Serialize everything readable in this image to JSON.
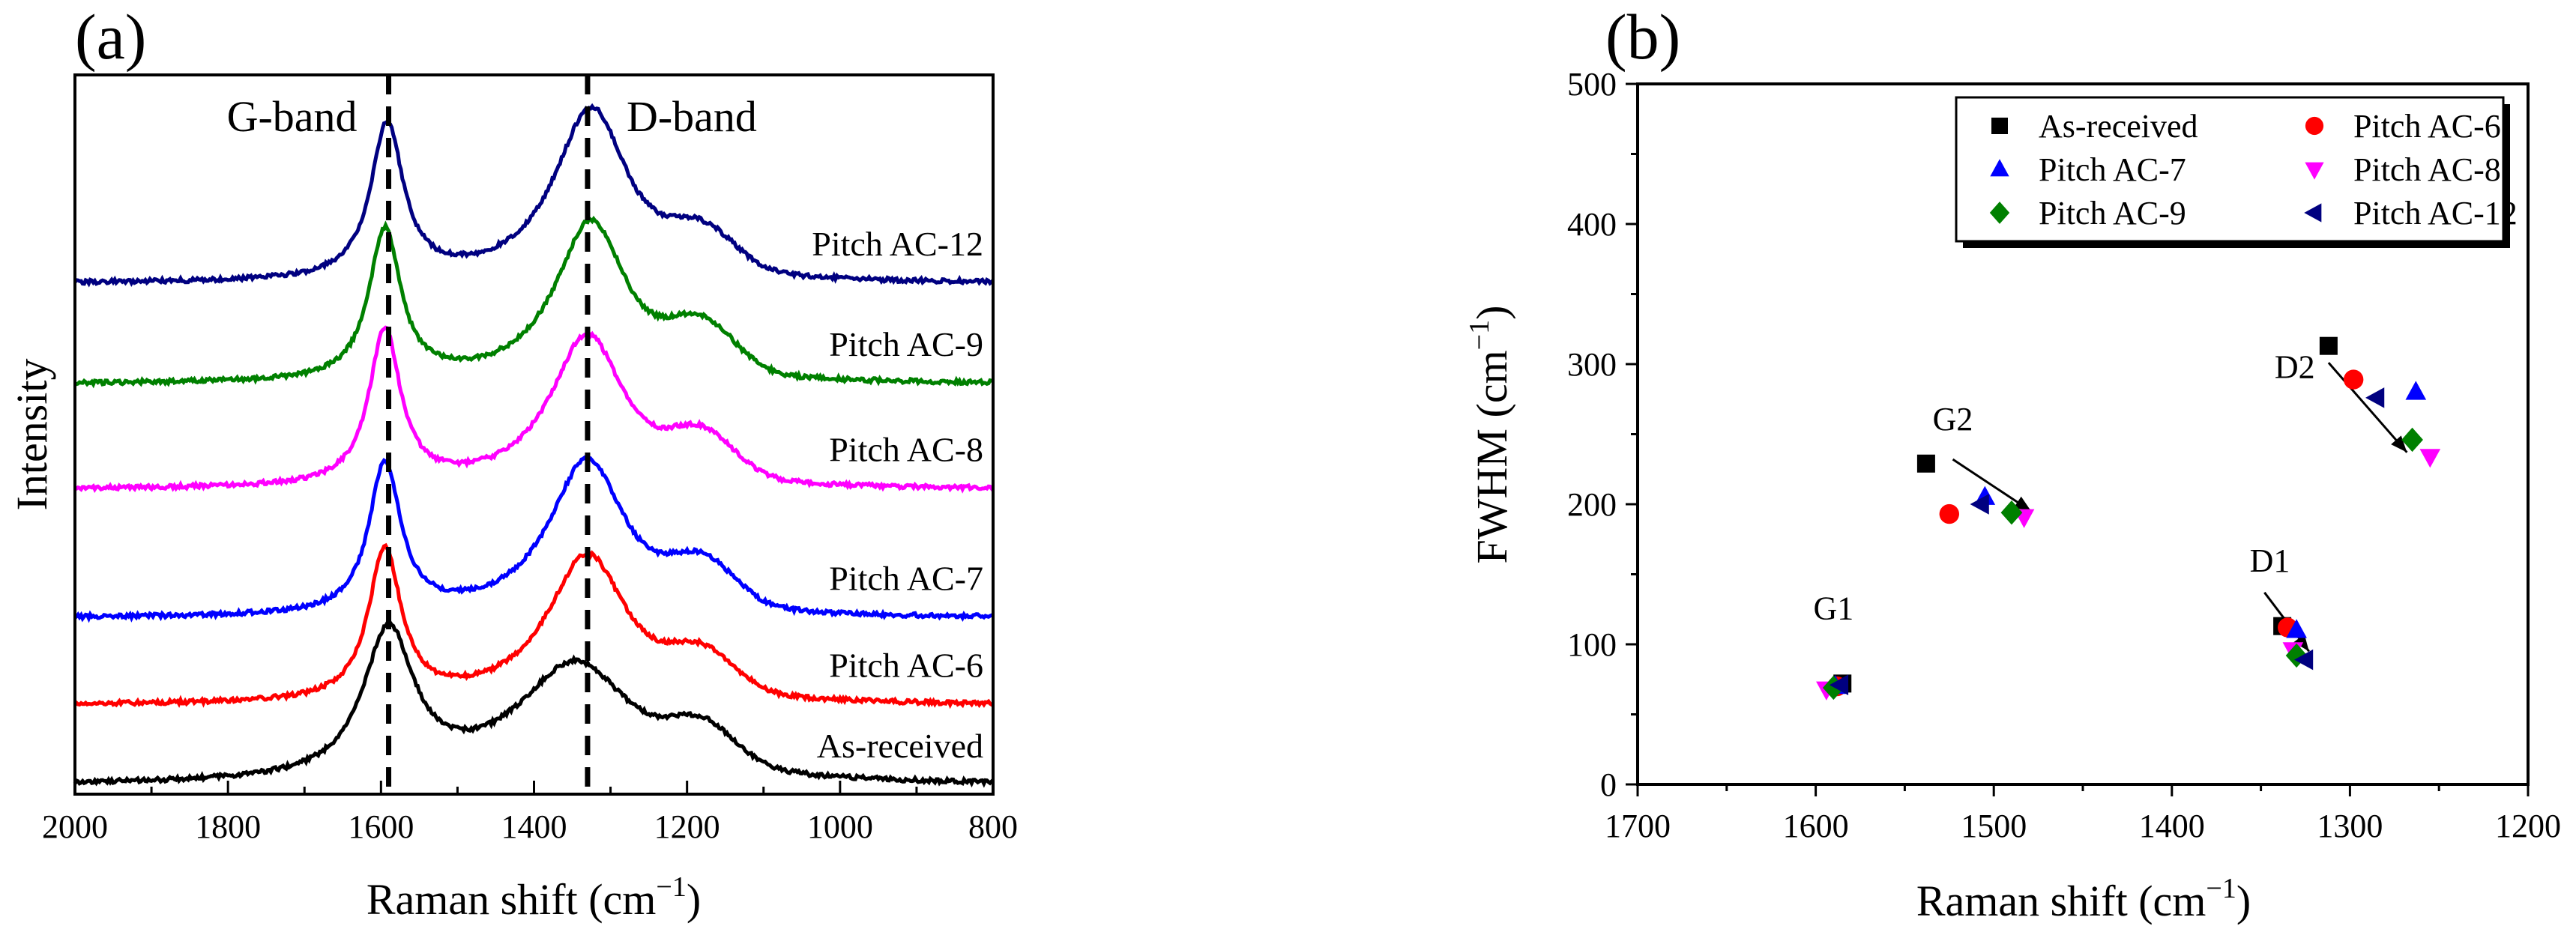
{
  "chart_data": [
    {
      "id": "a",
      "panel_label": "(a)",
      "type": "line",
      "title": "",
      "xlabel_main": "Raman shift (cm",
      "xlabel_sup": "−1",
      "xlabel_end": ")",
      "ylabel": "Intensity",
      "xlim": [
        2000,
        800
      ],
      "xticks": [
        "2000",
        "1800",
        "1600",
        "1400",
        "1200",
        "1000",
        "800"
      ],
      "band_lines": [
        {
          "label": "G-band",
          "x": 1590
        },
        {
          "label": "D-band",
          "x": 1330
        }
      ],
      "series": [
        {
          "name": "As-received",
          "color": "#000000",
          "baseline": 0.0,
          "g_pos": 1590,
          "g_height": 1.75,
          "g_width": 40,
          "d_pos": 1345,
          "d_height": 1.45,
          "d_width": 95,
          "bump_height": 0.45
        },
        {
          "name": "Pitch AC-6",
          "color": "#ff0000",
          "baseline": 0.96,
          "g_pos": 1595,
          "g_height": 1.8,
          "g_width": 26,
          "d_pos": 1330,
          "d_height": 1.8,
          "d_width": 65,
          "bump_height": 0.45
        },
        {
          "name": "Pitch AC-7",
          "color": "#0000ff",
          "baseline": 2.0,
          "g_pos": 1595,
          "g_height": 1.8,
          "g_width": 25,
          "d_pos": 1330,
          "d_height": 1.9,
          "d_width": 62,
          "bump_height": 0.5
        },
        {
          "name": "Pitch AC-8",
          "color": "#ff00ff",
          "baseline": 3.54,
          "g_pos": 1595,
          "g_height": 1.85,
          "g_width": 25,
          "d_pos": 1330,
          "d_height": 1.85,
          "d_width": 60,
          "bump_height": 0.5
        },
        {
          "name": "Pitch AC-9",
          "color": "#008000",
          "baseline": 4.8,
          "g_pos": 1595,
          "g_height": 1.8,
          "g_width": 25,
          "d_pos": 1325,
          "d_height": 1.95,
          "d_width": 58,
          "bump_height": 0.55
        },
        {
          "name": "Pitch AC-12",
          "color": "#000080",
          "baseline": 6.0,
          "g_pos": 1592,
          "g_height": 1.85,
          "g_width": 26,
          "d_pos": 1325,
          "d_height": 2.1,
          "d_width": 60,
          "bump_height": 0.45
        }
      ],
      "ylim": [
        -0.1,
        8.5
      ]
    },
    {
      "id": "b",
      "panel_label": "(b)",
      "type": "scatter",
      "title": "",
      "xlabel_main": "Raman shift (cm",
      "xlabel_sup": "−1",
      "xlabel_end": ")",
      "ylabel_main": "FWHM (cm",
      "ylabel_sup": "−1",
      "ylabel_end": ")",
      "xlim": [
        1700,
        1200
      ],
      "ylim": [
        0,
        500
      ],
      "xticks": [
        "1700",
        "1600",
        "1500",
        "1400",
        "1300",
        "1200"
      ],
      "yticks": [
        "0",
        "100",
        "200",
        "300",
        "400",
        "500"
      ],
      "legend_position": "top-right",
      "series": [
        {
          "name": "As-received",
          "color": "#000000",
          "marker": "square",
          "points": [
            [
              1585,
              72
            ],
            [
              1538,
              229
            ],
            [
              1338,
              113
            ],
            [
              1312,
              313
            ]
          ]
        },
        {
          "name": "Pitch AC-6",
          "color": "#ff0000",
          "marker": "circle",
          "points": [
            [
              1588,
              70
            ],
            [
              1525,
              193
            ],
            [
              1335,
              112
            ],
            [
              1298,
              289
            ]
          ]
        },
        {
          "name": "Pitch AC-7",
          "color": "#0000ff",
          "marker": "triangle-up",
          "points": [
            [
              1589,
              70
            ],
            [
              1505,
              205
            ],
            [
              1330,
              110
            ],
            [
              1263,
              280
            ]
          ]
        },
        {
          "name": "Pitch AC-8",
          "color": "#ff00ff",
          "marker": "triangle-down",
          "points": [
            [
              1594,
              68
            ],
            [
              1483,
              191
            ],
            [
              1332,
              96
            ],
            [
              1255,
              234
            ]
          ]
        },
        {
          "name": "Pitch AC-9",
          "color": "#008000",
          "marker": "diamond",
          "points": [
            [
              1590,
              69
            ],
            [
              1490,
              194
            ],
            [
              1330,
              92
            ],
            [
              1265,
              246
            ]
          ]
        },
        {
          "name": "Pitch AC-12",
          "color": "#000080",
          "marker": "triangle-left",
          "points": [
            [
              1586,
              71
            ],
            [
              1507,
              200
            ],
            [
              1325,
              89
            ],
            [
              1285,
              276
            ]
          ]
        }
      ],
      "annotations": [
        {
          "label": "G1",
          "x": 1590,
          "y": 118
        },
        {
          "label": "G2",
          "x": 1523,
          "y": 253
        },
        {
          "label": "D1",
          "x": 1345,
          "y": 152
        },
        {
          "label": "D2",
          "x": 1331,
          "y": 290
        }
      ],
      "arrows": [
        {
          "from": [
            1523,
            232
          ],
          "to": [
            1479,
            195
          ]
        },
        {
          "from": [
            1348,
            137
          ],
          "to": [
            1323,
            95
          ]
        },
        {
          "from": [
            1312,
            301
          ],
          "to": [
            1268,
            237
          ]
        }
      ]
    }
  ]
}
